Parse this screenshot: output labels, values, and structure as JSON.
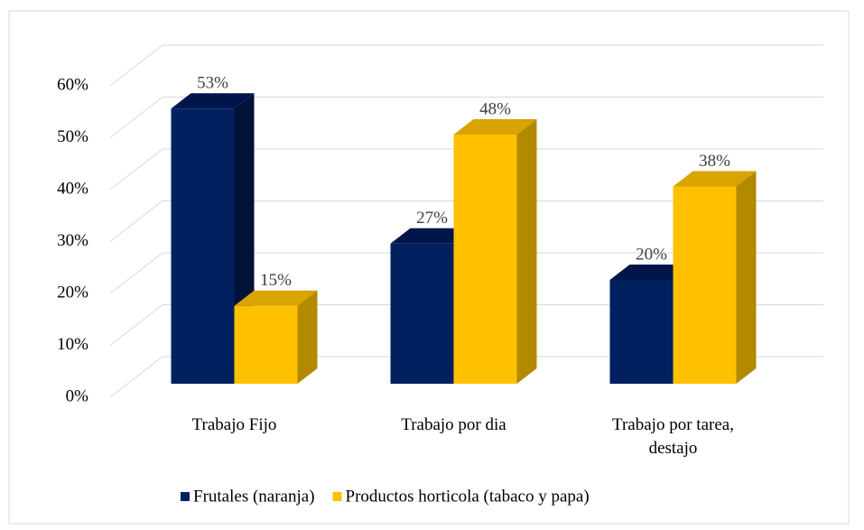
{
  "chart_data": {
    "type": "bar3d",
    "categories": [
      "Trabajo Fijo",
      "Trabajo por dia",
      "Trabajo por tarea, destajo"
    ],
    "series": [
      {
        "name": "Frutales (naranja)",
        "color": "#002060",
        "values": [
          53,
          27,
          20
        ],
        "value_labels": [
          "53%",
          "27%",
          "20%"
        ]
      },
      {
        "name": "Productos horticola (tabaco y papa)",
        "color": "#ffc000",
        "values": [
          15,
          48,
          38
        ],
        "value_labels": [
          "15%",
          "48%",
          "38%"
        ]
      }
    ],
    "ylim": [
      0,
      60
    ],
    "yticks": [
      {
        "value": 0,
        "label": "0%"
      },
      {
        "value": 10,
        "label": "10%"
      },
      {
        "value": 20,
        "label": "20%"
      },
      {
        "value": 30,
        "label": "30%"
      },
      {
        "value": 40,
        "label": "40%"
      },
      {
        "value": 50,
        "label": "50%"
      },
      {
        "value": 60,
        "label": "60%"
      }
    ],
    "grid": true,
    "legend": "bottom"
  }
}
